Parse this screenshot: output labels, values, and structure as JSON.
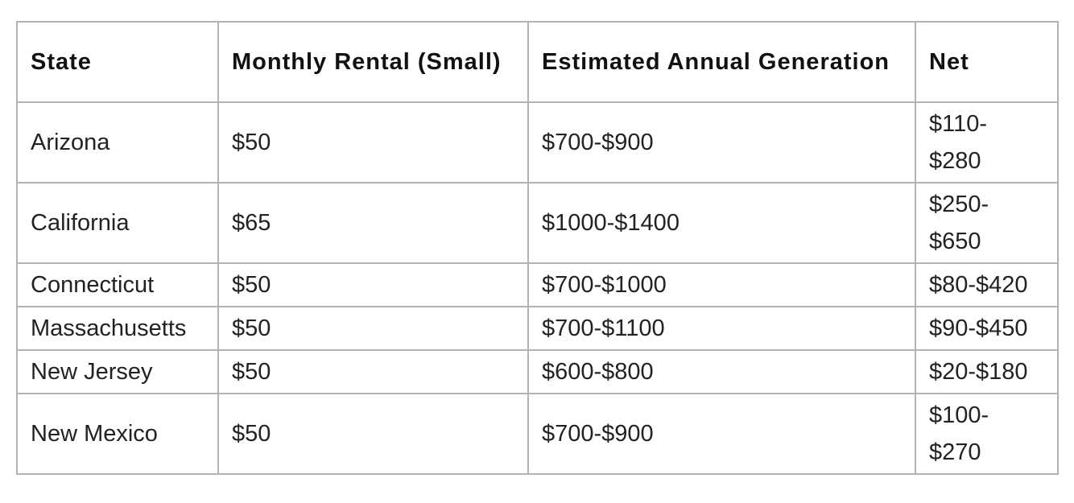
{
  "table": {
    "headers": [
      "State",
      "Monthly Rental (Small)",
      "Estimated Annual Generation",
      "Net"
    ],
    "rows": [
      {
        "state": "Arizona",
        "rental": "$50",
        "generation": "$700-$900",
        "net_1": "$110-",
        "net_2": "$280"
      },
      {
        "state": "California",
        "rental": "$65",
        "generation": "$1000-$1400",
        "net_1": "$250-",
        "net_2": "$650"
      },
      {
        "state": "Connecticut",
        "rental": "$50",
        "generation": "$700-$1000",
        "net_1": "$80-$420",
        "net_2": ""
      },
      {
        "state": "Massachusetts",
        "rental": "$50",
        "generation": "$700-$1100",
        "net_1": "$90-$450",
        "net_2": ""
      },
      {
        "state": "New Jersey",
        "rental": "$50",
        "generation": "$600-$800",
        "net_1": "$20-$180",
        "net_2": ""
      },
      {
        "state": "New Mexico",
        "rental": "$50",
        "generation": "$700-$900",
        "net_1": "$100-",
        "net_2": "$270"
      }
    ]
  }
}
